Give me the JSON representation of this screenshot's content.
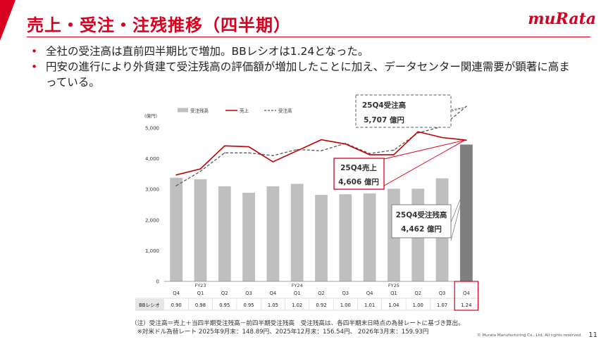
{
  "header": {
    "title": "売上・受注・注残推移（四半期）",
    "logo": "muRata"
  },
  "bullets": [
    "全社の受注高は直前四半期比で増加。BBレシオは1.24となった。",
    "円安の進行により外貨建て受注残高の評価額が増加したことに加え、データセンター関連需要が顕著に高まっている。"
  ],
  "chart_data": {
    "type": "bar",
    "unit_label": "(億円)",
    "ylim": [
      0,
      5000
    ],
    "yticks": [
      "0",
      "1,000",
      "2,000",
      "3,000",
      "4,000",
      "5,000"
    ],
    "quarters": [
      "Q4",
      "Q1",
      "Q2",
      "Q3",
      "Q4",
      "Q1",
      "Q2",
      "Q3",
      "Q4",
      "Q1",
      "Q2",
      "Q3",
      "Q4"
    ],
    "fiscal_years": [
      {
        "index": 1,
        "label": "FY23"
      },
      {
        "index": 5,
        "label": "FY24"
      },
      {
        "index": 9,
        "label": "FY25"
      }
    ],
    "legend": [
      "受注残高",
      "売上",
      "受注高"
    ],
    "series": [
      {
        "name": "受注残高",
        "type": "bar",
        "values": [
          3380,
          3330,
          3100,
          2890,
          3100,
          3180,
          2820,
          2840,
          2870,
          3020,
          3020,
          3360,
          4462
        ]
      },
      {
        "name": "売上",
        "type": "line",
        "values": [
          3470,
          3670,
          4420,
          4390,
          3900,
          4260,
          4620,
          4480,
          4130,
          4130,
          4880,
          4690,
          4606
        ]
      },
      {
        "name": "受注高",
        "type": "dashed-line",
        "values": [
          3120,
          3590,
          4190,
          4190,
          4100,
          4300,
          4260,
          4500,
          4170,
          4280,
          4840,
          5050,
          5707
        ]
      }
    ],
    "bb_ratio": {
      "label": "BBレシオ",
      "values": [
        "0.90",
        "0.98",
        "0.95",
        "0.95",
        "1.05",
        "1.02",
        "0.92",
        "1.00",
        "1.01",
        "1.04",
        "1.00",
        "1.07",
        "1.24"
      ]
    },
    "callouts": [
      {
        "title": "25Q4受注高",
        "value": "5,707 億円"
      },
      {
        "title": "25Q4売上",
        "value": "4,606 億円"
      },
      {
        "title": "25Q4受注残高",
        "value": "4,462 億円"
      }
    ],
    "colors": {
      "bar": "#bfbfbf",
      "bar_highlight": "#7f7f7f",
      "sales": "#c00000",
      "orders": "#595959",
      "accent": "#d8001e"
    }
  },
  "notes": [
    "（注）受注高＝売上＋当四半期受注残高－前四半期受注残高　受注残高は、各四半期末日時点の為替レートに基づき算出。",
    "　※対米ドル為替レート 2025年9月末：148.89円、2025年12月末：156.54円、 2026年3月末：159.93円"
  ],
  "footer": {
    "copyright": "© Murata Manufacturing Co., Ltd. All rights reserved.",
    "page": "11"
  }
}
